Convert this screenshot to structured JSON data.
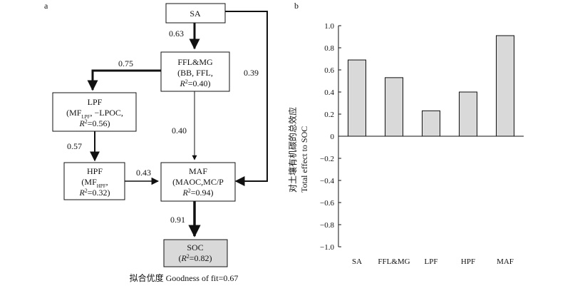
{
  "panel_a": {
    "label": "a",
    "nodes": {
      "sa": {
        "lines": [
          "SA"
        ]
      },
      "ffl": {
        "lines": [
          "FFL&MG",
          "(BB, FFL,",
          "R²=0.40)"
        ]
      },
      "lpf": {
        "lines": [
          "LPF",
          "(MFLPF, −LPOC,",
          "R²=0.56)"
        ]
      },
      "hpf": {
        "lines": [
          "HPF",
          "(MFHPF,",
          "R²=0.32)"
        ]
      },
      "maf": {
        "lines": [
          "MAF",
          "(MAOC,MC/P",
          "R²=0.94)"
        ]
      },
      "soc": {
        "lines": [
          "SOC",
          "(R²=0.82)"
        ]
      }
    },
    "edges": {
      "sa_ffl": "0.63",
      "ffl_lpf": "0.75",
      "sa_maf": "0.39",
      "ffl_maf": "0.40",
      "lpf_hpf": "0.57",
      "hpf_maf": "0.43",
      "maf_soc": "0.91"
    },
    "footer": "拟合优度 Goodness of fit=0.67"
  },
  "panel_b": {
    "label": "b"
  },
  "colors": {
    "bar_fill": "#d9d9d9",
    "soc_fill": "#d9d9d9",
    "stroke": "#111111"
  },
  "chart_data": {
    "type": "bar",
    "categories": [
      "SA",
      "FFL&MG",
      "LPF",
      "HPF",
      "MAF"
    ],
    "values": [
      0.69,
      0.53,
      0.23,
      0.4,
      0.91
    ],
    "ylim": [
      -1.0,
      1.0
    ],
    "yticks": [
      "1.0",
      "0.8",
      "0.6",
      "0.4",
      "0.2",
      "0",
      "−0.2",
      "−0.4",
      "−0.6",
      "−0.8",
      "−1.0"
    ],
    "ylabel_cn": "对土壤有机碳的总效应",
    "ylabel_en": "Total effect to SOC",
    "grid": false,
    "legend": "none"
  }
}
